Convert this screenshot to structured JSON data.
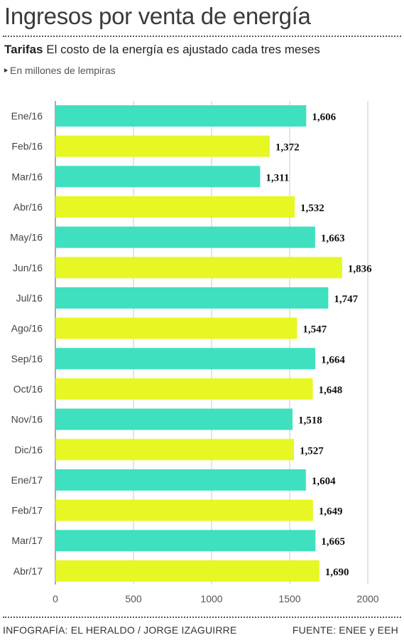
{
  "header": {
    "title": "Ingresos por venta de energía",
    "subtitle_bold": "Tarifas",
    "subtitle_text": "El costo de la energía es ajustado cada tres meses",
    "unit_note": "En millones de lempiras"
  },
  "footer": {
    "credit": "INFOGRAFÍA: EL HERALDO / JORGE IZAGUIRRE",
    "source": "FUENTE: ENEE y EEH"
  },
  "colors": {
    "teal": "#3fe0c0",
    "yellow": "#e6f723",
    "grid": "#c8c8c8",
    "axis": "#555555"
  },
  "chart_data": {
    "type": "bar",
    "orientation": "horizontal",
    "categories": [
      "Ene/16",
      "Feb/16",
      "Mar/16",
      "Abr/16",
      "May/16",
      "Jun/16",
      "Jul/16",
      "Ago/16",
      "Sep/16",
      "Oct/16",
      "Nov/16",
      "Dic/16",
      "Ene/17",
      "Feb/17",
      "Mar/17",
      "Abr/17"
    ],
    "values": [
      1606,
      1372,
      1311,
      1532,
      1663,
      1836,
      1747,
      1547,
      1664,
      1648,
      1518,
      1527,
      1604,
      1649,
      1665,
      1690
    ],
    "value_labels": [
      "1,606",
      "1,372",
      "1,311",
      "1,532",
      "1,663",
      "1,836",
      "1,747",
      "1,547",
      "1,664",
      "1,648",
      "1,518",
      "1,527",
      "1,604",
      "1,649",
      "1,665",
      "1,690"
    ],
    "bar_colors": [
      "teal",
      "yellow",
      "teal",
      "yellow",
      "teal",
      "yellow",
      "teal",
      "yellow",
      "teal",
      "yellow",
      "teal",
      "yellow",
      "teal",
      "yellow",
      "teal",
      "yellow"
    ],
    "xlim": [
      0,
      2000
    ],
    "xticks": [
      0,
      500,
      1000,
      1500,
      2000
    ],
    "xtick_labels": [
      "0",
      "500",
      "1000",
      "1500",
      "2000"
    ],
    "grid": true
  }
}
